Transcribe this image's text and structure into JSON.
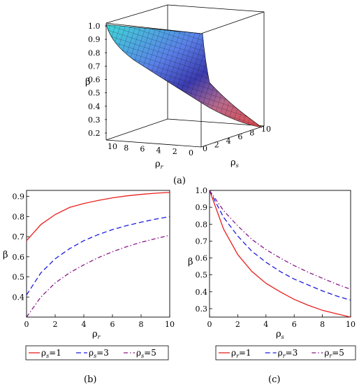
{
  "panel_labels": [
    "(a)",
    "(b)",
    "(c)"
  ],
  "chart_data": [
    {
      "panel": "(a)",
      "type": "surface",
      "xlabel": "ρ_r",
      "ylabel": "ρ_s",
      "zlabel": "β",
      "x_ticks": [
        10,
        8,
        6,
        4,
        2,
        0
      ],
      "y_ticks": [
        0,
        2,
        4,
        6,
        8,
        10
      ],
      "z_ticks": [
        1.0,
        0.9,
        0.8,
        0.7,
        0.6,
        0.5,
        0.4,
        0.3,
        0.2
      ],
      "xlim": [
        0,
        10
      ],
      "ylim": [
        0,
        10
      ],
      "zlim": [
        0.2,
        1.0
      ],
      "corner_values": [
        {
          "rho_r": 10,
          "rho_s": 0,
          "beta": 1.0
        },
        {
          "rho_r": 0,
          "rho_s": 0,
          "beta": 1.0
        },
        {
          "rho_r": 10,
          "rho_s": 10,
          "beta": 0.57
        },
        {
          "rho_r": 0,
          "rho_s": 10,
          "beta": 0.2
        }
      ]
    },
    {
      "panel": "(b)",
      "type": "line",
      "xlabel": "ρ_r",
      "ylabel": "β",
      "xlim": [
        0,
        10
      ],
      "ylim": [
        0.3,
        0.93
      ],
      "x_ticks": [
        0,
        2,
        4,
        6,
        8,
        10
      ],
      "y_ticks": [
        0.4,
        0.5,
        0.6,
        0.7,
        0.8,
        0.9
      ],
      "x": [
        0,
        1,
        2,
        3,
        4,
        5,
        6,
        7,
        8,
        9,
        10
      ],
      "series": [
        {
          "name": "ρ_s=1",
          "color": "#e8201c",
          "dash": "solid",
          "values": [
            0.68,
            0.76,
            0.81,
            0.845,
            0.865,
            0.88,
            0.893,
            0.903,
            0.91,
            0.916,
            0.92
          ]
        },
        {
          "name": "ρ_s=3",
          "color": "#1c1ce0",
          "dash": "dash",
          "values": [
            0.41,
            0.52,
            0.59,
            0.64,
            0.68,
            0.71,
            0.735,
            0.755,
            0.772,
            0.787,
            0.8
          ]
        },
        {
          "name": "ρ_s=5",
          "color": "#8a1a8a",
          "dash": "dashdot",
          "values": [
            0.3,
            0.4,
            0.47,
            0.52,
            0.56,
            0.595,
            0.625,
            0.65,
            0.672,
            0.69,
            0.707
          ]
        }
      ],
      "legend_placement": "bottom"
    },
    {
      "panel": "(c)",
      "type": "line",
      "xlabel": "ρ_s",
      "ylabel": "β",
      "xlim": [
        0,
        10
      ],
      "ylim": [
        0.25,
        1.0
      ],
      "x_ticks": [
        0,
        2,
        4,
        6,
        8,
        10
      ],
      "y_ticks": [
        0.3,
        0.4,
        0.5,
        0.6,
        0.7,
        0.8,
        0.9,
        1.0
      ],
      "x": [
        0,
        1,
        2,
        3,
        4,
        5,
        6,
        7,
        8,
        9,
        10
      ],
      "series": [
        {
          "name": "ρ_r=1",
          "color": "#e8201c",
          "dash": "solid",
          "values": [
            1.0,
            0.77,
            0.62,
            0.52,
            0.45,
            0.4,
            0.355,
            0.32,
            0.29,
            0.27,
            0.25
          ]
        },
        {
          "name": "ρ_r=3",
          "color": "#1c1ce0",
          "dash": "dash",
          "values": [
            1.0,
            0.84,
            0.73,
            0.64,
            0.575,
            0.52,
            0.475,
            0.44,
            0.405,
            0.375,
            0.35
          ]
        },
        {
          "name": "ρ_r=5",
          "color": "#8a1a8a",
          "dash": "dashdot",
          "values": [
            1.0,
            0.88,
            0.79,
            0.71,
            0.65,
            0.6,
            0.555,
            0.515,
            0.48,
            0.445,
            0.415
          ]
        }
      ],
      "legend_placement": "bottom"
    }
  ]
}
